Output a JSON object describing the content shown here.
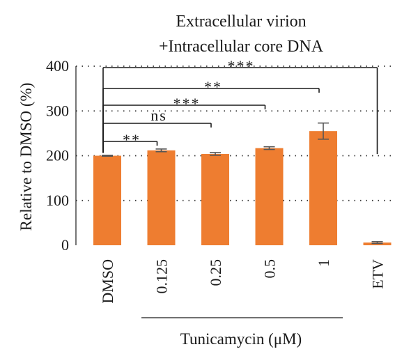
{
  "chart_data": {
    "type": "bar",
    "title_lines": [
      "Extracellular virion",
      "+Intracellular core DNA"
    ],
    "ylabel": "Relative to DMSO (%)",
    "xlabel": "Tunicamycin (μM)",
    "categories": [
      "DMSO",
      "0.125",
      "0.25",
      "0.5",
      "1",
      "ETV"
    ],
    "values": [
      200,
      212,
      204,
      217,
      255,
      6
    ],
    "errors": [
      1,
      3,
      3,
      3,
      18,
      2
    ],
    "ylim": [
      0,
      400
    ],
    "yticks": [
      0,
      100,
      200,
      300,
      400
    ],
    "grid": "dotted horizontal",
    "bar_color": "#ee7d30",
    "significance": [
      {
        "from": "DMSO",
        "to": "0.125",
        "label": "**"
      },
      {
        "from": "DMSO",
        "to": "0.25",
        "label": "ns"
      },
      {
        "from": "DMSO",
        "to": "0.5",
        "label": "***"
      },
      {
        "from": "DMSO",
        "to": "1",
        "label": "**"
      },
      {
        "from": "DMSO",
        "to": "ETV",
        "label": "***"
      }
    ]
  }
}
